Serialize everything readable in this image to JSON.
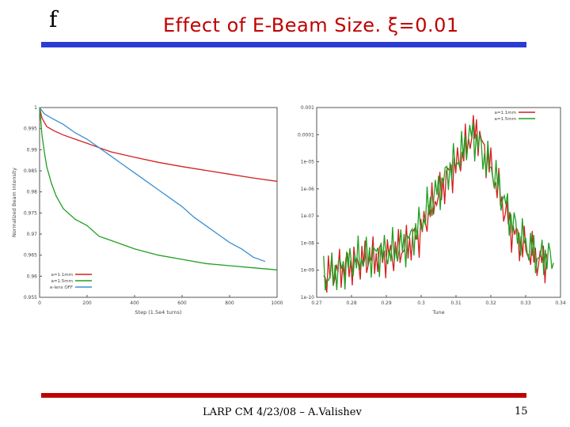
{
  "slide": {
    "logo": "f",
    "title": "Effect of E-Beam Size. ξ=0.01",
    "footer": "LARP CM 4/23/08 – A.Valishev",
    "page_number": "15",
    "colors": {
      "title": "#c00000",
      "top_bar": "#2b3bd6",
      "bottom_bar": "#c00000"
    }
  },
  "chart_data": [
    {
      "type": "line",
      "xlabel": "Step (1.5e4 turns)",
      "ylabel": "Normalized Beam Intensity",
      "xlim": [
        0,
        1000
      ],
      "ylim": [
        0.955,
        1.0
      ],
      "xticks": [
        "0",
        "200",
        "400",
        "600",
        "800",
        "1000"
      ],
      "yticks": [
        "1",
        "0.995",
        "0.99",
        "0.985",
        "0.98",
        "0.975",
        "0.97",
        "0.965",
        "0.96",
        "0.955"
      ],
      "grid": false,
      "legend_position": "bottom-left",
      "series": [
        {
          "name": "a=1.1mm",
          "color": "#d42020",
          "x": [
            0,
            10,
            30,
            60,
            100,
            150,
            200,
            250,
            300,
            400,
            500,
            600,
            700,
            800,
            900,
            1000
          ],
          "y": [
            1.0,
            0.9975,
            0.9955,
            0.9945,
            0.9935,
            0.9925,
            0.9915,
            0.9905,
            0.9895,
            0.9882,
            0.987,
            0.986,
            0.9851,
            0.9842,
            0.9833,
            0.9825
          ]
        },
        {
          "name": "a=1.5mm",
          "color": "#20a020",
          "x": [
            0,
            5,
            10,
            20,
            30,
            50,
            70,
            100,
            150,
            200,
            250,
            300,
            400,
            500,
            600,
            700,
            800,
            900,
            1000
          ],
          "y": [
            1.0,
            0.997,
            0.9935,
            0.9895,
            0.986,
            0.982,
            0.979,
            0.976,
            0.9735,
            0.972,
            0.9695,
            0.9685,
            0.9665,
            0.965,
            0.964,
            0.963,
            0.9625,
            0.962,
            0.9615
          ]
        },
        {
          "name": "e-lens OFF",
          "color": "#3a8fd0",
          "x": [
            0,
            20,
            50,
            100,
            150,
            200,
            250,
            300,
            350,
            400,
            450,
            500,
            550,
            600,
            650,
            700,
            750,
            800,
            850,
            900,
            950
          ],
          "y": [
            1.0,
            0.9985,
            0.9975,
            0.996,
            0.994,
            0.9925,
            0.9905,
            0.9885,
            0.9865,
            0.9845,
            0.9825,
            0.9805,
            0.9785,
            0.9765,
            0.974,
            0.972,
            0.97,
            0.968,
            0.9665,
            0.9645,
            0.9635
          ]
        }
      ]
    },
    {
      "type": "line",
      "xlabel": "Tune",
      "ylabel": "",
      "xlim": [
        0.27,
        0.34
      ],
      "xticks": [
        "0.27",
        "0.28",
        "0.29",
        "0.3",
        "0.31",
        "0.32",
        "0.33",
        "0.34"
      ],
      "yticks": [
        "0.001",
        "0.0001",
        "1e-05",
        "1e-06",
        "1e-07",
        "1e-08",
        "1e-09",
        "1e-10"
      ],
      "ylim": [
        "1e-10",
        "0.001"
      ],
      "yscale": "log",
      "grid": false,
      "legend_position": "top-right",
      "series": [
        {
          "name": "a=1.1mm",
          "color": "#d42020",
          "x": [
            0.272,
            0.276,
            0.28,
            0.284,
            0.288,
            0.292,
            0.296,
            0.3,
            0.302,
            0.304,
            0.306,
            0.308,
            0.31,
            0.312,
            0.314,
            0.316,
            0.318,
            0.32,
            0.322,
            0.324,
            0.326,
            0.328,
            0.33,
            0.332,
            0.334,
            0.336
          ],
          "y_log10": [
            -9.2,
            -9.0,
            -8.8,
            -8.6,
            -8.5,
            -8.4,
            -8.1,
            -7.6,
            -6.9,
            -6.4,
            -6.0,
            -5.4,
            -5.2,
            -4.7,
            -4.1,
            -3.8,
            -4.6,
            -5.2,
            -6.0,
            -6.8,
            -7.5,
            -7.9,
            -8.2,
            -8.4,
            -8.7,
            -8.6
          ]
        },
        {
          "name": "a=1.5mm",
          "color": "#20a020",
          "x": [
            0.272,
            0.276,
            0.28,
            0.284,
            0.288,
            0.292,
            0.296,
            0.3,
            0.302,
            0.304,
            0.306,
            0.308,
            0.31,
            0.312,
            0.314,
            0.316,
            0.318,
            0.32,
            0.322,
            0.324,
            0.326,
            0.328,
            0.33,
            0.332,
            0.334,
            0.336,
            0.338
          ],
          "y_log10": [
            -9.3,
            -9.0,
            -8.7,
            -8.5,
            -8.4,
            -8.3,
            -8.0,
            -7.3,
            -6.7,
            -6.2,
            -5.8,
            -5.3,
            -5.0,
            -4.6,
            -4.0,
            -4.2,
            -4.8,
            -5.2,
            -5.8,
            -6.5,
            -7.2,
            -7.7,
            -8.0,
            -8.3,
            -8.6,
            -8.4,
            -8.8
          ]
        }
      ]
    }
  ]
}
